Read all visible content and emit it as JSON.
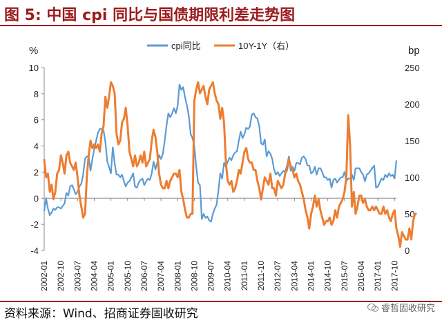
{
  "header": {
    "title": "图 5:  中国 cpi 同比与国债期限利差走势图"
  },
  "footer": {
    "source": "资料来源：Wind、招商证券固收研究",
    "watermark": "睿哲固收研究"
  },
  "colors": {
    "title": "#9b1c1c",
    "cpi": "#5b9bd5",
    "spread": "#ed7d31"
  },
  "chart_data": {
    "type": "line",
    "x_ticks": [
      "2002-01",
      "2002-10",
      "2003-07",
      "2004-04",
      "2005-01",
      "2005-10",
      "2006-07",
      "2007-04",
      "2008-01",
      "2008-10",
      "2009-07",
      "2010-04",
      "2011-01",
      "2011-10",
      "2012-07",
      "2013-04",
      "2014-01",
      "2014-10",
      "2015-07",
      "2016-04",
      "2017-01",
      "2017-10"
    ],
    "x_start": "2002-01",
    "left_axis": {
      "label": "%",
      "ylim": [
        -4,
        10
      ],
      "ticks": [
        -4,
        -2,
        0,
        2,
        4,
        6,
        8,
        10
      ]
    },
    "right_axis": {
      "label": "bp",
      "ylim": [
        0,
        250
      ],
      "ticks": [
        0,
        50,
        100,
        150,
        200,
        250
      ]
    },
    "legend": {
      "position": "top"
    },
    "series": [
      {
        "name": "cpi同比",
        "axis": "left",
        "values": [
          -1.0,
          0.0,
          -0.8,
          -1.3,
          -1.1,
          -0.8,
          -0.9,
          -0.7,
          -0.7,
          -0.8,
          -0.6,
          -0.4,
          0.4,
          0.2,
          0.9,
          1.0,
          0.7,
          0.3,
          0.5,
          0.9,
          1.1,
          1.8,
          3.0,
          3.2,
          3.2,
          2.1,
          3.0,
          3.8,
          4.4,
          5.0,
          5.3,
          5.3,
          5.2,
          4.3,
          2.8,
          2.4,
          1.9,
          3.9,
          2.7,
          1.8,
          1.8,
          1.6,
          1.8,
          1.3,
          0.9,
          1.2,
          1.3,
          1.6,
          1.9,
          0.9,
          0.8,
          1.2,
          1.4,
          1.5,
          1.0,
          1.3,
          1.5,
          1.4,
          1.9,
          2.8,
          2.2,
          2.7,
          3.3,
          3.0,
          3.4,
          4.4,
          5.6,
          6.5,
          6.2,
          6.5,
          6.9,
          6.5,
          7.1,
          8.7,
          8.3,
          8.5,
          7.7,
          7.1,
          6.3,
          4.9,
          4.6,
          4.0,
          2.4,
          1.2,
          1.0,
          -1.6,
          -1.2,
          -1.5,
          -1.4,
          -1.7,
          -1.8,
          -1.2,
          -0.8,
          -0.5,
          0.6,
          1.9,
          1.5,
          2.7,
          2.4,
          2.8,
          3.1,
          2.9,
          3.3,
          3.5,
          3.6,
          4.4,
          5.1,
          4.6,
          4.9,
          5.4,
          5.3,
          5.5,
          6.4,
          6.5,
          6.2,
          6.1,
          5.5,
          4.2,
          4.1,
          4.5,
          3.2,
          3.6,
          3.4,
          3.0,
          2.2,
          1.8,
          2.0,
          1.7,
          1.9,
          2.1,
          2.0,
          2.5,
          3.2,
          2.1,
          2.4,
          2.1,
          2.7,
          2.7,
          2.6,
          3.1,
          3.2,
          3.0,
          2.5,
          2.5,
          1.9,
          2.0,
          2.4,
          1.8,
          2.3,
          2.3,
          2.0,
          1.6,
          1.6,
          1.4,
          1.5,
          0.8,
          1.4,
          1.5,
          1.2,
          1.4,
          1.6,
          1.6,
          2.0,
          1.3,
          1.5,
          1.5,
          1.8,
          1.4,
          2.3,
          2.3,
          2.3,
          2.0,
          1.8,
          1.3,
          1.8,
          1.9,
          2.1,
          2.3,
          2.5,
          0.8,
          0.9,
          1.2,
          1.5,
          1.4,
          1.8,
          1.6,
          1.9,
          1.7,
          1.8,
          1.5,
          2.9
        ]
      },
      {
        "name": "10Y-1Y（右）",
        "axis": "right",
        "values": [
          125,
          100,
          105,
          80,
          90,
          70,
          80,
          105,
          110,
          130,
          120,
          105,
          130,
          135,
          120,
          115,
          110,
          120,
          100,
          75,
          60,
          45,
          50,
          100,
          130,
          150,
          140,
          145,
          140,
          145,
          135,
          160,
          170,
          210,
          195,
          210,
          230,
          225,
          215,
          160,
          145,
          150,
          175,
          180,
          195,
          170,
          135,
          125,
          115,
          130,
          115,
          120,
          130,
          120,
          135,
          115,
          120,
          125,
          150,
          165,
          155,
          135,
          105,
          90,
          85,
          85,
          95,
          85,
          95,
          100,
          105,
          105,
          100,
          110,
          80,
          70,
          55,
          45,
          45,
          50,
          50,
          205,
          220,
          230,
          215,
          220,
          225,
          210,
          200,
          220,
          225,
          230,
          215,
          205,
          200,
          180,
          195,
          175,
          120,
          95,
          90,
          95,
          80,
          85,
          95,
          110,
          105,
          120,
          135,
          140,
          125,
          120,
          120,
          110,
          110,
          95,
          85,
          70,
          85,
          100,
          95,
          90,
          105,
          85,
          85,
          75,
          95,
          90,
          85,
          90,
          105,
          110,
          125,
          115,
          110,
          100,
          105,
          95,
          90,
          80,
          70,
          55,
          45,
          30,
          50,
          60,
          75,
          60,
          70,
          55,
          45,
          35,
          40,
          40,
          45,
          35,
          40,
          55,
          45,
          60,
          65,
          70,
          80,
          100,
          185,
          145,
          60,
          80,
          50,
          60,
          75,
          75,
          65,
          70,
          60,
          55,
          55,
          60,
          55,
          60,
          55,
          50,
          50,
          60,
          50,
          55,
          45,
          40,
          50,
          55,
          30,
          20,
          5,
          25,
          20,
          15,
          15,
          30,
          15,
          40,
          50,
          50
        ]
      }
    ]
  }
}
